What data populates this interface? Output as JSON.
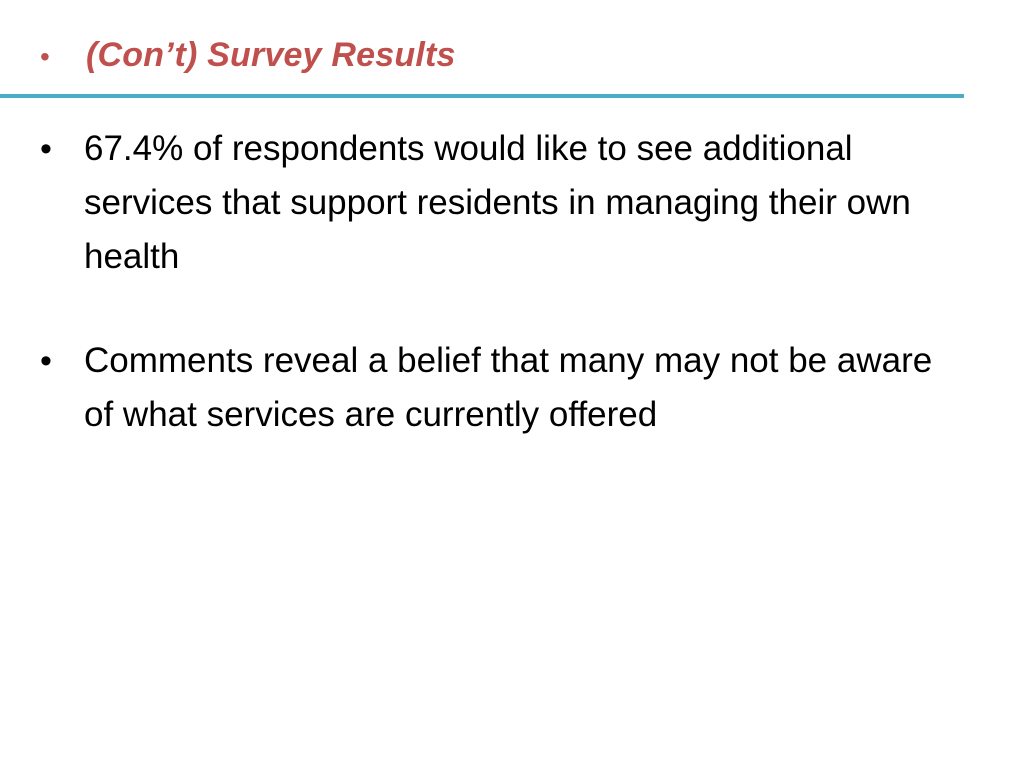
{
  "slide": {
    "title": "(Con’t) Survey Results",
    "bullet_symbol": "•",
    "points": [
      "67.4% of respondents would like to see additional services that support residents in managing their own health",
      "Comments reveal a belief that many may not be aware of what services are currently offered"
    ]
  },
  "colors": {
    "title": "#c0504d",
    "rule": "#4bacc6",
    "body_text": "#000000",
    "background": "#ffffff"
  }
}
